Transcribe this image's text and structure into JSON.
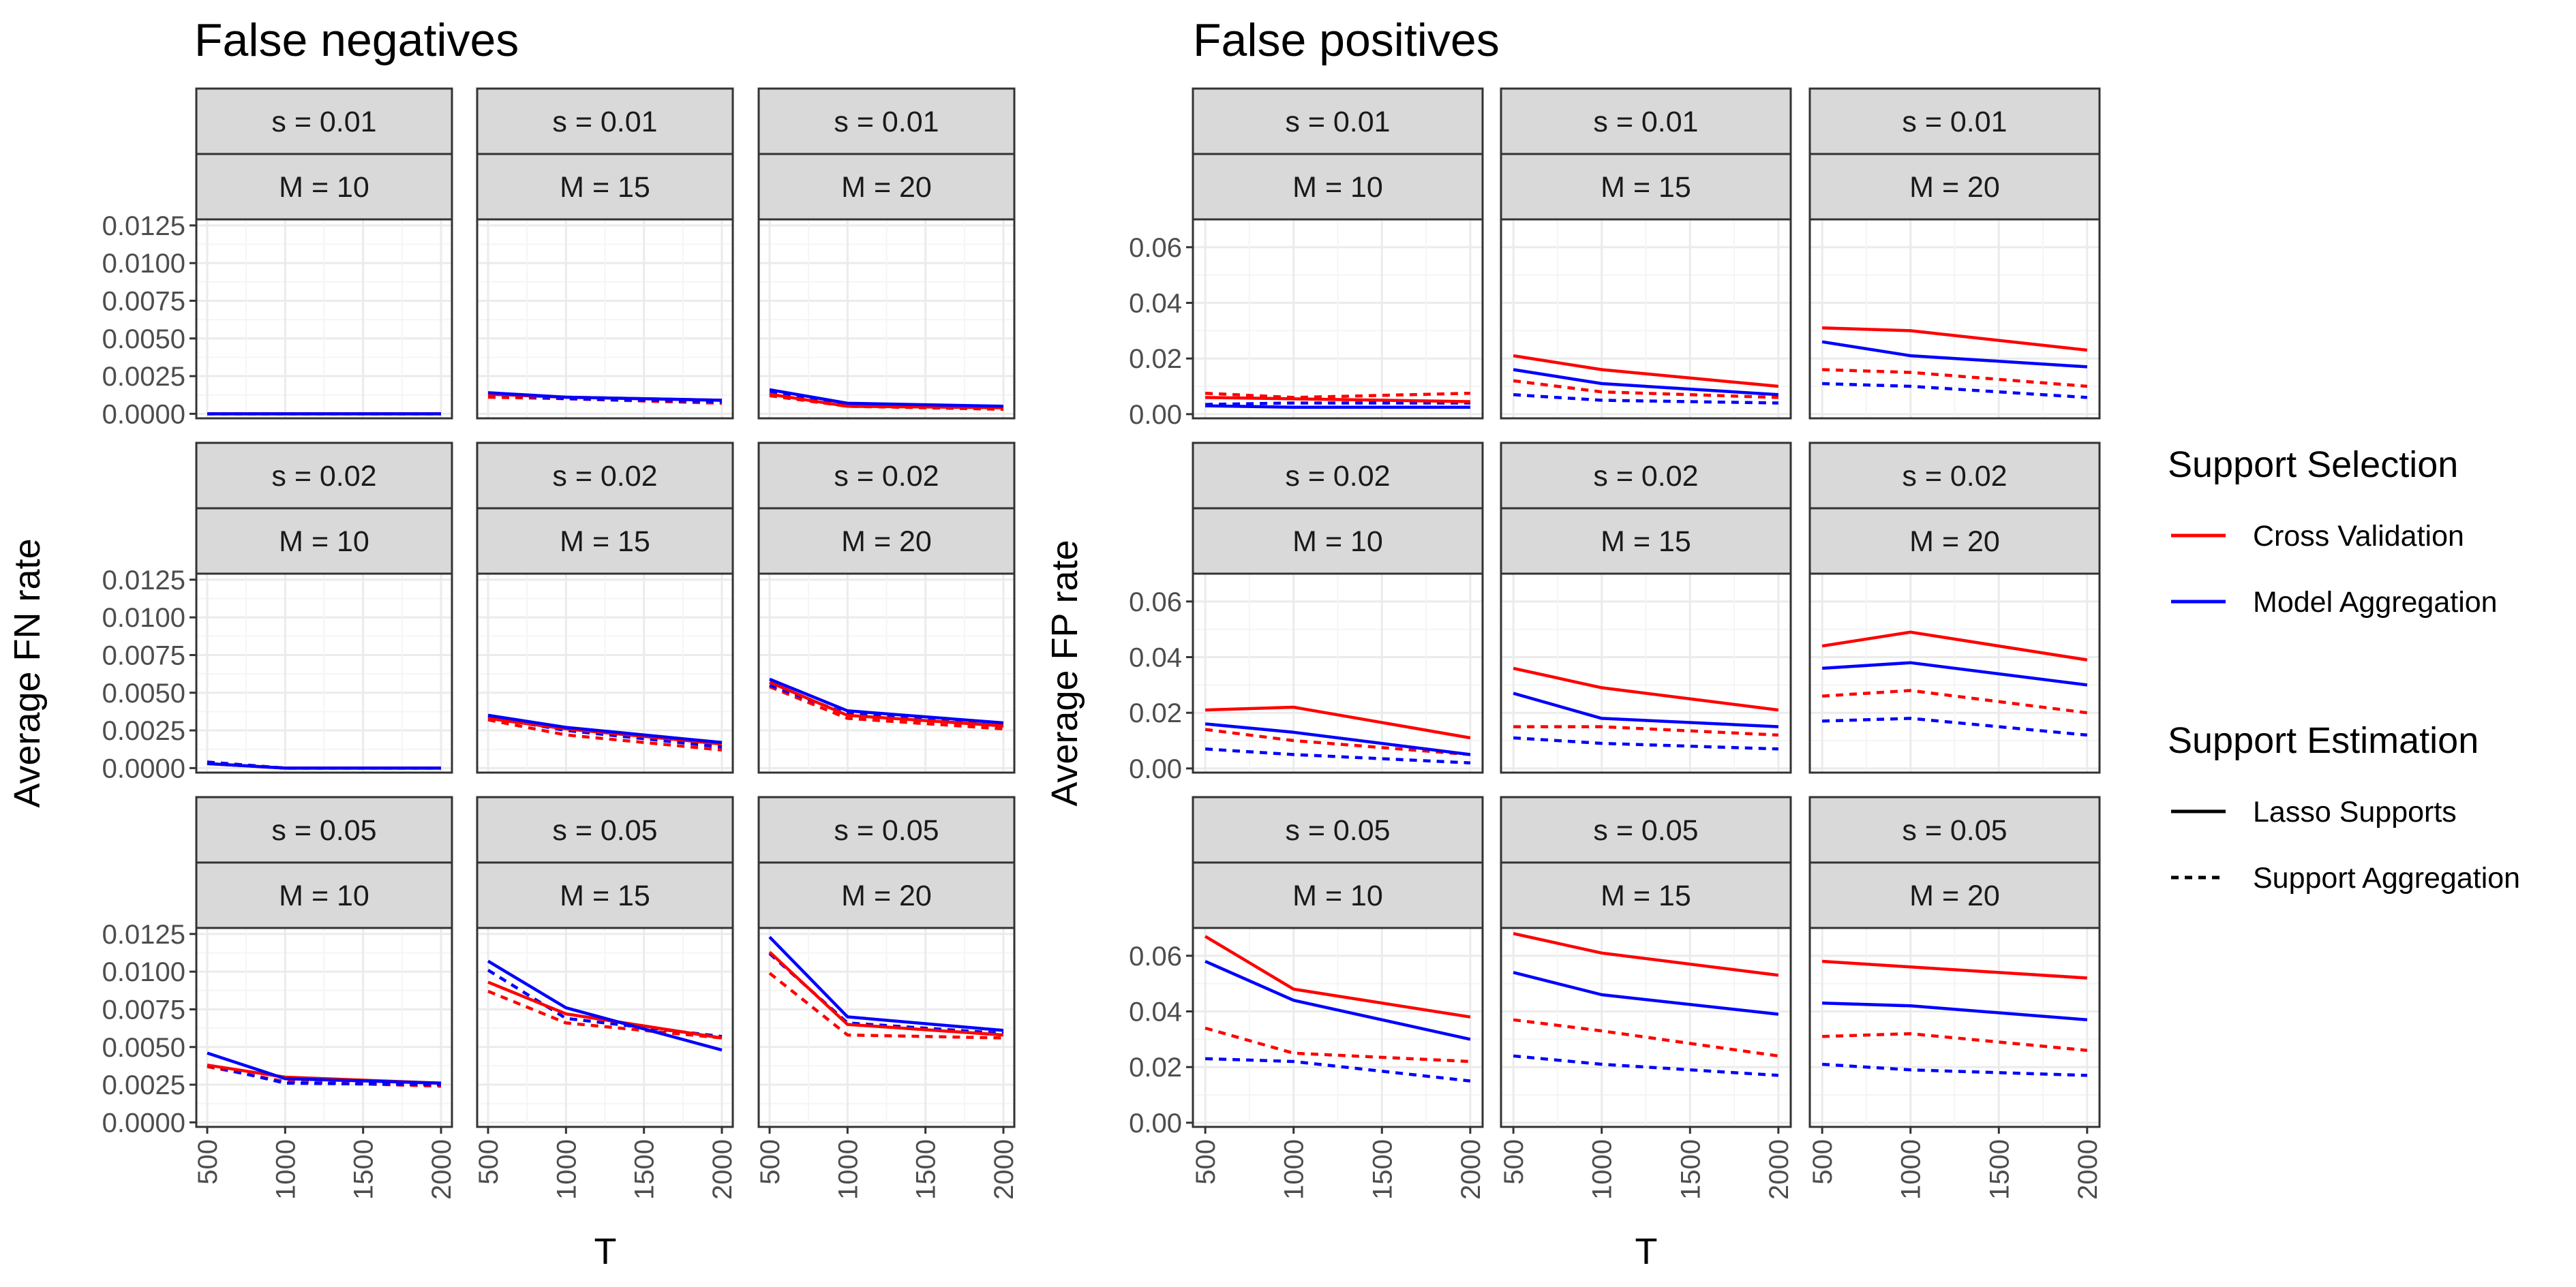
{
  "chart_data": {
    "type": "line",
    "colors": {
      "Cross Validation": "#ff0000",
      "Model Aggregation": "#0000ff"
    },
    "line_types": {
      "Lasso Supports": "solid",
      "Support Aggregation": "dashed"
    },
    "x": [
      500,
      1000,
      2000
    ],
    "x_ticks": [
      "500",
      "1000",
      "1500",
      "2000"
    ],
    "xlabel": "T",
    "legend": {
      "position": "right",
      "color_title": "Support Selection",
      "color_entries": [
        "Cross Validation",
        "Model Aggregation"
      ],
      "linetype_title": "Support Estimation",
      "linetype_entries": [
        "Lasso Supports",
        "Support Aggregation"
      ]
    },
    "strip_s": [
      "s = 0.01",
      "s = 0.02",
      "s = 0.05"
    ],
    "strip_M": [
      "M = 10",
      "M = 15",
      "M = 20"
    ],
    "panels": [
      {
        "title": "False negatives",
        "ylabel": "Average FN rate",
        "ylim": [
          -0.0003,
          0.0129
        ],
        "y_ticks": [
          "0.0000",
          "0.0025",
          "0.0050",
          "0.0075",
          "0.0100",
          "0.0125"
        ],
        "rows": [
          [
            {
              "cv_lasso": [
                0,
                0,
                0
              ],
              "cv_agg": [
                0,
                0,
                0
              ],
              "ma_lasso": [
                0,
                0,
                0
              ],
              "ma_agg": [
                0,
                0,
                0
              ]
            },
            {
              "cv_lasso": [
                0.0013,
                0.0011,
                0.0009
              ],
              "cv_agg": [
                0.0011,
                0.001,
                0.0007
              ],
              "ma_lasso": [
                0.0014,
                0.0011,
                0.0009
              ],
              "ma_agg": [
                0.0013,
                0.001,
                0.0008
              ]
            },
            {
              "cv_lasso": [
                0.0013,
                0.0005,
                0.0004
              ],
              "cv_agg": [
                0.0012,
                0.0005,
                0.0003
              ],
              "ma_lasso": [
                0.0016,
                0.0007,
                0.0005
              ],
              "ma_agg": [
                0.0014,
                0.0006,
                0.0004
              ]
            }
          ],
          [
            {
              "cv_lasso": [
                0.0003,
                0,
                0
              ],
              "cv_agg": [
                0.0004,
                0,
                0
              ],
              "ma_lasso": [
                0.0003,
                0,
                0
              ],
              "ma_agg": [
                0.0004,
                0,
                0
              ]
            },
            {
              "cv_lasso": [
                0.0033,
                0.0026,
                0.0016
              ],
              "cv_agg": [
                0.0032,
                0.0022,
                0.0012
              ],
              "ma_lasso": [
                0.0035,
                0.0027,
                0.0017
              ],
              "ma_agg": [
                0.0034,
                0.0025,
                0.0014
              ]
            },
            {
              "cv_lasso": [
                0.0057,
                0.0035,
                0.0028
              ],
              "cv_agg": [
                0.0054,
                0.0033,
                0.0026
              ],
              "ma_lasso": [
                0.0059,
                0.0038,
                0.003
              ],
              "ma_agg": [
                0.0055,
                0.0036,
                0.0028
              ]
            }
          ],
          [
            {
              "cv_lasso": [
                0.0038,
                0.003,
                0.0026
              ],
              "cv_agg": [
                0.0037,
                0.0027,
                0.0024
              ],
              "ma_lasso": [
                0.0046,
                0.0029,
                0.0026
              ],
              "ma_agg": [
                0.0038,
                0.0026,
                0.0025
              ]
            },
            {
              "cv_lasso": [
                0.0093,
                0.0072,
                0.0056
              ],
              "cv_agg": [
                0.0087,
                0.0066,
                0.0056
              ],
              "ma_lasso": [
                0.0107,
                0.0076,
                0.0048
              ],
              "ma_agg": [
                0.0101,
                0.0069,
                0.0057
              ]
            },
            {
              "cv_lasso": [
                0.0113,
                0.0065,
                0.0058
              ],
              "cv_agg": [
                0.0099,
                0.0058,
                0.0056
              ],
              "ma_lasso": [
                0.0123,
                0.007,
                0.0061
              ],
              "ma_agg": [
                0.0112,
                0.0066,
                0.0059
              ]
            }
          ]
        ]
      },
      {
        "title": "False positives",
        "ylabel": "Average FP rate",
        "ylim": [
          -0.0015,
          0.07
        ],
        "y_ticks": [
          "0.00",
          "0.02",
          "0.04",
          "0.06"
        ],
        "rows": [
          [
            {
              "cv_lasso": [
                0.006,
                0.0055,
                0.0045
              ],
              "cv_agg": [
                0.0075,
                0.006,
                0.0075
              ],
              "ma_lasso": [
                0.003,
                0.0025,
                0.0025
              ],
              "ma_agg": [
                0.0035,
                0.004,
                0.004
              ]
            },
            {
              "cv_lasso": [
                0.021,
                0.016,
                0.01
              ],
              "cv_agg": [
                0.012,
                0.008,
                0.006
              ],
              "ma_lasso": [
                0.016,
                0.011,
                0.007
              ],
              "ma_agg": [
                0.007,
                0.005,
                0.004
              ]
            },
            {
              "cv_lasso": [
                0.031,
                0.03,
                0.023
              ],
              "cv_agg": [
                0.016,
                0.015,
                0.01
              ],
              "ma_lasso": [
                0.026,
                0.021,
                0.017
              ],
              "ma_agg": [
                0.011,
                0.01,
                0.006
              ]
            }
          ],
          [
            {
              "cv_lasso": [
                0.021,
                0.022,
                0.011
              ],
              "cv_agg": [
                0.014,
                0.01,
                0.005
              ],
              "ma_lasso": [
                0.016,
                0.013,
                0.005
              ],
              "ma_agg": [
                0.007,
                0.005,
                0.002
              ]
            },
            {
              "cv_lasso": [
                0.036,
                0.029,
                0.021
              ],
              "cv_agg": [
                0.015,
                0.015,
                0.012
              ],
              "ma_lasso": [
                0.027,
                0.018,
                0.015
              ],
              "ma_agg": [
                0.011,
                0.009,
                0.007
              ]
            },
            {
              "cv_lasso": [
                0.044,
                0.049,
                0.039
              ],
              "cv_agg": [
                0.026,
                0.028,
                0.02
              ],
              "ma_lasso": [
                0.036,
                0.038,
                0.03
              ],
              "ma_agg": [
                0.017,
                0.018,
                0.012
              ]
            }
          ],
          [
            {
              "cv_lasso": [
                0.067,
                0.048,
                0.038
              ],
              "cv_agg": [
                0.034,
                0.025,
                0.022
              ],
              "ma_lasso": [
                0.058,
                0.044,
                0.03
              ],
              "ma_agg": [
                0.023,
                0.022,
                0.015
              ]
            },
            {
              "cv_lasso": [
                0.068,
                0.061,
                0.053
              ],
              "cv_agg": [
                0.037,
                0.033,
                0.024
              ],
              "ma_lasso": [
                0.054,
                0.046,
                0.039
              ],
              "ma_agg": [
                0.024,
                0.021,
                0.017
              ]
            },
            {
              "cv_lasso": [
                0.058,
                0.056,
                0.052
              ],
              "cv_agg": [
                0.031,
                0.032,
                0.026
              ],
              "ma_lasso": [
                0.043,
                0.042,
                0.037
              ],
              "ma_agg": [
                0.021,
                0.019,
                0.017
              ]
            }
          ]
        ]
      }
    ]
  }
}
